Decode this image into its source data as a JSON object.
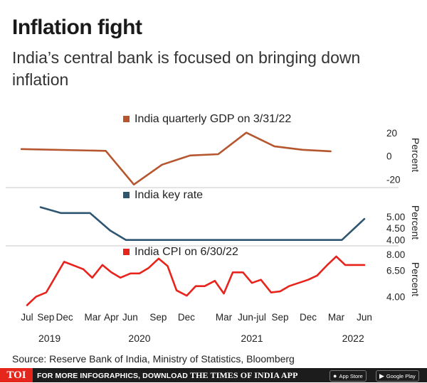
{
  "header": {
    "title": "Inflation fight",
    "subtitle": "India’s central bank is focused on bringing down inflation"
  },
  "source": "Source: Reserve Bank of India, Ministry of Statistics, Bloomberg",
  "footer": {
    "logo": "TOI",
    "promo_prefix": "FOR MORE INFOGRAPHICS, DOWNLOAD",
    "promo_brand": "THE TIMES OF INDIA APP",
    "app_store": "App Store",
    "google_play": "Google Play"
  },
  "chart_data": {
    "type": "line",
    "x_axis": {
      "range": [
        2019.5,
        2022.5
      ],
      "ticks": [
        {
          "x": 2019.5,
          "label": "Jul"
        },
        {
          "x": 2019.667,
          "label": "Sep"
        },
        {
          "x": 2019.833,
          "label": "Dec"
        },
        {
          "x": 2020.083,
          "label": "Mar"
        },
        {
          "x": 2020.25,
          "label": "Apr"
        },
        {
          "x": 2020.417,
          "label": "Jun"
        },
        {
          "x": 2020.667,
          "label": "Sep"
        },
        {
          "x": 2020.917,
          "label": "Dec"
        },
        {
          "x": 2021.25,
          "label": "Mar"
        },
        {
          "x": 2021.5,
          "label": "Jun-jul"
        },
        {
          "x": 2021.75,
          "label": "Sep"
        },
        {
          "x": 2022.0,
          "label": "Dec"
        },
        {
          "x": 2022.25,
          "label": "Mar"
        },
        {
          "x": 2022.5,
          "label": "Jun"
        }
      ],
      "years": [
        {
          "x": 2019.7,
          "label": "2019"
        },
        {
          "x": 2020.5,
          "label": "2020"
        },
        {
          "x": 2021.5,
          "label": "2021"
        },
        {
          "x": 2022.4,
          "label": "2022"
        }
      ]
    },
    "panels": [
      {
        "name": "gdp",
        "title": "India quarterly GDP on 3/31/22",
        "color": "#b5562f",
        "ylabel": "Percent",
        "ylim": [
          -24,
          26
        ],
        "yticks": [
          20,
          0,
          -20
        ],
        "ytick_labels": [
          "20",
          "0",
          "-20"
        ],
        "x": [
          2019.45,
          2020.2,
          2020.45,
          2020.7,
          2020.95,
          2021.2,
          2021.45,
          2021.7,
          2021.95,
          2022.2
        ],
        "values": [
          6.0,
          4.5,
          -24.4,
          -7.4,
          0.5,
          1.6,
          20.1,
          8.4,
          5.4,
          4.1
        ]
      },
      {
        "name": "rate",
        "title": "India key rate",
        "color": "#2f5670",
        "ylabel": "Percent",
        "ylim": [
          3.9,
          5.6
        ],
        "yticks": [
          5.0,
          4.5,
          4.0
        ],
        "ytick_labels": [
          "5.00",
          "4.50",
          "4.00"
        ],
        "x": [
          2019.62,
          2019.8,
          2020.06,
          2020.24,
          2020.38,
          2021.0,
          2022.3,
          2022.5
        ],
        "values": [
          5.4,
          5.15,
          5.15,
          4.4,
          4.0,
          4.0,
          4.0,
          4.9
        ]
      },
      {
        "name": "cpi",
        "title": "India CPI on 6/30/22",
        "color": "#e8231c",
        "ylabel": "Percent",
        "ylim": [
          2.9,
          8.4
        ],
        "yticks": [
          8.0,
          6.5,
          4.0
        ],
        "ytick_labels": [
          "8.00",
          "6.50",
          "4.00"
        ],
        "x": [
          2019.5,
          2019.58,
          2019.67,
          2019.83,
          2020.0,
          2020.08,
          2020.17,
          2020.25,
          2020.33,
          2020.42,
          2020.5,
          2020.58,
          2020.67,
          2020.75,
          2020.83,
          2020.92,
          2021.0,
          2021.08,
          2021.17,
          2021.25,
          2021.33,
          2021.42,
          2021.5,
          2021.58,
          2021.67,
          2021.75,
          2021.83,
          2022.0,
          2022.08,
          2022.17,
          2022.25,
          2022.33,
          2022.42,
          2022.5
        ],
        "values": [
          3.2,
          4.0,
          4.4,
          7.3,
          6.6,
          5.8,
          7.0,
          6.3,
          5.8,
          6.2,
          6.2,
          6.7,
          7.6,
          6.9,
          4.6,
          4.1,
          5.0,
          5.0,
          5.5,
          4.3,
          6.3,
          6.3,
          5.3,
          5.6,
          4.4,
          4.5,
          5.0,
          5.6,
          6.0,
          7.0,
          7.8,
          7.0,
          7.0,
          7.0
        ]
      }
    ]
  }
}
